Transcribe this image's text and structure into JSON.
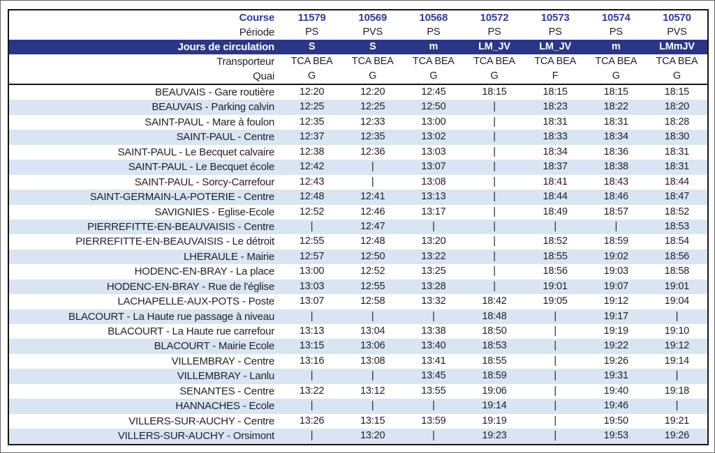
{
  "colors": {
    "band_navy": "#2b3784",
    "row_light_blue": "#d9e5f2",
    "course_blue": "#2d3c96",
    "body_text": "#1d1f2a",
    "border_black": "#141414"
  },
  "header": {
    "course_label": "Course",
    "periode_label": "Période",
    "jours_label": "Jours de circulation",
    "transporteur_label": "Transporteur",
    "quai_label": "Quai",
    "courses": [
      "11579",
      "10569",
      "10568",
      "10572",
      "10573",
      "10574",
      "10570"
    ],
    "periodes": [
      "PS",
      "PVS",
      "PS",
      "PS",
      "PS",
      "PS",
      "PVS"
    ],
    "jours": [
      "S",
      "S",
      "m",
      "LM_JV",
      "LM_JV",
      "m",
      "LMmJV"
    ],
    "transporteurs": [
      "TCA BEA",
      "TCA BEA",
      "TCA BEA",
      "TCA BEA",
      "TCA BEA",
      "TCA BEA",
      "TCA BEA"
    ],
    "quais": [
      "G",
      "G",
      "G",
      "G",
      "F",
      "G",
      "G"
    ]
  },
  "no_service_mark": "|",
  "rows": [
    {
      "stop": "BEAUVAIS - Gare routière",
      "times": [
        "12:20",
        "12:20",
        "12:45",
        "18:15",
        "18:15",
        "18:15",
        "18:15"
      ]
    },
    {
      "stop": "BEAUVAIS - Parking calvin",
      "times": [
        "12:25",
        "12:25",
        "12:50",
        "|",
        "18:23",
        "18:22",
        "18:20"
      ]
    },
    {
      "stop": "SAINT-PAUL - Mare à foulon",
      "times": [
        "12:35",
        "12:33",
        "13:00",
        "|",
        "18:31",
        "18:31",
        "18:28"
      ]
    },
    {
      "stop": "SAINT-PAUL - Centre",
      "times": [
        "12:37",
        "12:35",
        "13:02",
        "|",
        "18:33",
        "18:34",
        "18:30"
      ]
    },
    {
      "stop": "SAINT-PAUL - Le Becquet calvaire",
      "times": [
        "12:38",
        "12:36",
        "13:03",
        "|",
        "18:34",
        "18:36",
        "18:31"
      ]
    },
    {
      "stop": "SAINT-PAUL - Le Becquet école",
      "times": [
        "12:42",
        "|",
        "13:07",
        "|",
        "18:37",
        "18:38",
        "18:31"
      ]
    },
    {
      "stop": "SAINT-PAUL - Sorcy-Carrefour",
      "times": [
        "12:43",
        "|",
        "13:08",
        "|",
        "18:41",
        "18:43",
        "18:44"
      ]
    },
    {
      "stop": "SAINT-GERMAIN-LA-POTERIE - Centre",
      "times": [
        "12:48",
        "12:41",
        "13:13",
        "|",
        "18:44",
        "18:46",
        "18:47"
      ]
    },
    {
      "stop": "SAVIGNIES - Eglise-Ecole",
      "times": [
        "12:52",
        "12:46",
        "13:17",
        "|",
        "18:49",
        "18:57",
        "18:52"
      ]
    },
    {
      "stop": "PIERREFITTE-EN-BEAUVAISIS - Centre",
      "times": [
        "|",
        "12:47",
        "|",
        "|",
        "|",
        "|",
        "18:53"
      ]
    },
    {
      "stop": "PIERREFITTE-EN-BEAUVAISIS - Le détroit",
      "times": [
        "12:55",
        "12:48",
        "13:20",
        "|",
        "18:52",
        "18:59",
        "18:54"
      ]
    },
    {
      "stop": "LHERAULE - Mairie",
      "times": [
        "12:57",
        "12:50",
        "13:22",
        "|",
        "18:55",
        "19:02",
        "18:56"
      ]
    },
    {
      "stop": "HODENC-EN-BRAY - La place",
      "times": [
        "13:00",
        "12:52",
        "13:25",
        "|",
        "18:56",
        "19:03",
        "18:58"
      ]
    },
    {
      "stop": "HODENC-EN-BRAY - Rue de l'église",
      "times": [
        "13:03",
        "12:55",
        "13:28",
        "|",
        "19:01",
        "19:07",
        "19:01"
      ]
    },
    {
      "stop": "LACHAPELLE-AUX-POTS - Poste",
      "times": [
        "13:07",
        "12:58",
        "13:32",
        "18:42",
        "19:05",
        "19:12",
        "19:04"
      ]
    },
    {
      "stop": "BLACOURT - La Haute rue passage à niveau",
      "times": [
        "|",
        "|",
        "|",
        "18:48",
        "|",
        "19:17",
        "|"
      ]
    },
    {
      "stop": "BLACOURT - La Haute rue carrefour",
      "times": [
        "13:13",
        "13:04",
        "13:38",
        "18:50",
        "|",
        "19:19",
        "19:10"
      ]
    },
    {
      "stop": "BLACOURT - Mairie Ecole",
      "times": [
        "13:15",
        "13:06",
        "13:40",
        "18:53",
        "|",
        "19:22",
        "19:12"
      ]
    },
    {
      "stop": "VILLEMBRAY - Centre",
      "times": [
        "13:16",
        "13:08",
        "13:41",
        "18:55",
        "|",
        "19:26",
        "19:14"
      ]
    },
    {
      "stop": "VILLEMBRAY - Lanlu",
      "times": [
        "|",
        "|",
        "13:45",
        "18:59",
        "|",
        "19:31",
        "|"
      ]
    },
    {
      "stop": "SENANTES - Centre",
      "times": [
        "13:22",
        "13:12",
        "13:55",
        "19:06",
        "|",
        "19:40",
        "19:18"
      ]
    },
    {
      "stop": "HANNACHES - Ecole",
      "times": [
        "|",
        "|",
        "|",
        "19:14",
        "|",
        "19:46",
        "|"
      ]
    },
    {
      "stop": "VILLERS-SUR-AUCHY - Centre",
      "times": [
        "13:26",
        "13:15",
        "13:59",
        "19:19",
        "|",
        "19:50",
        "19:21"
      ]
    },
    {
      "stop": "VILLERS-SUR-AUCHY - Orsimont",
      "times": [
        "|",
        "13:20",
        "|",
        "19:23",
        "|",
        "19:53",
        "19:26"
      ]
    }
  ]
}
